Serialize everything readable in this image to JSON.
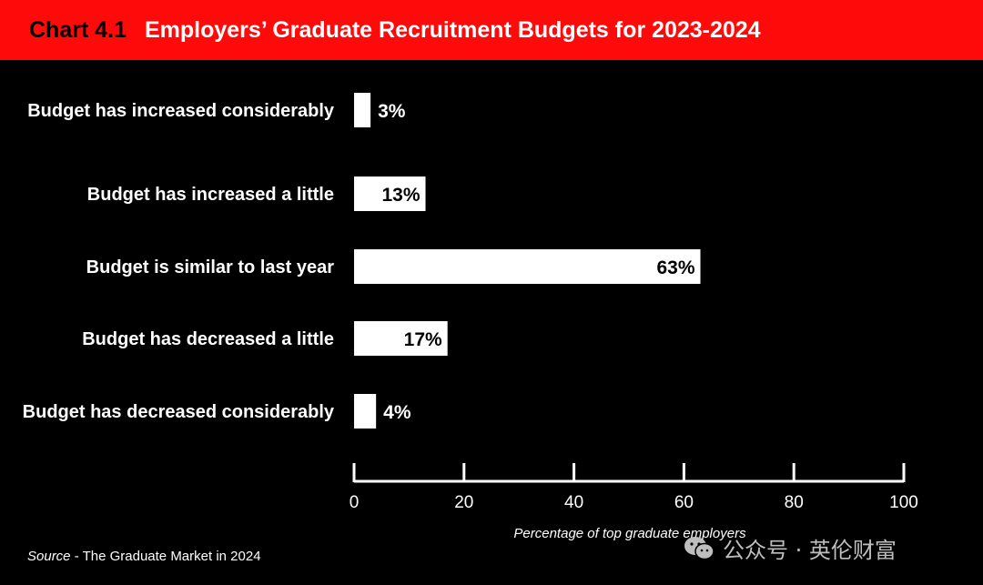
{
  "colors": {
    "header_bg": "#ff0a0a",
    "background": "#000000",
    "bar": "#ffffff",
    "text": "#ffffff",
    "chart_number": "#000000"
  },
  "header": {
    "chart_number": "Chart 4.1",
    "title": "Employers’ Graduate Recruitment Budgets for 2023-2024"
  },
  "chart_data": {
    "type": "bar",
    "orientation": "horizontal",
    "title": "Employers’ Graduate Recruitment Budgets for 2023-2024",
    "categories": [
      "Budget has increased considerably",
      "Budget has increased a little",
      "Budget is similar to last year",
      "Budget has decreased a little",
      "Budget has decreased considerably"
    ],
    "values": [
      3,
      13,
      63,
      17,
      4
    ],
    "data_labels": [
      "3%",
      "13%",
      "63%",
      "17%",
      "4%"
    ],
    "xlabel": "Percentage of top graduate employers",
    "ylabel": "",
    "xlim": [
      0,
      100
    ],
    "ticks": [
      0,
      20,
      40,
      60,
      80,
      100
    ],
    "tick_labels": [
      "0",
      "20",
      "40",
      "60",
      "80",
      "100"
    ],
    "grid": false,
    "legend": "none"
  },
  "source": {
    "label": "Source",
    "text": " - The Graduate Market in 2024"
  },
  "watermark": {
    "icon": "wechat-icon",
    "text": "公众号 · 英伦财富"
  }
}
